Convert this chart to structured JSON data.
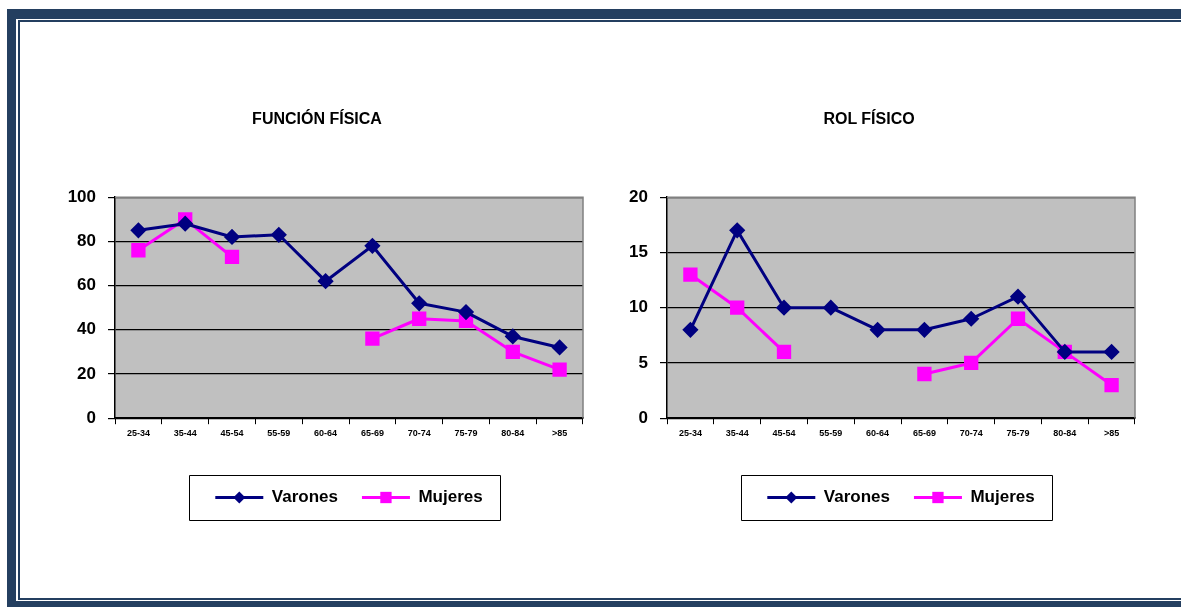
{
  "chart_data": [
    {
      "type": "line",
      "title": "FUNCIÓN FÍSICA",
      "categories": [
        "25-34",
        "35-44",
        "45-54",
        "55-59",
        "60-64",
        "65-69",
        "70-74",
        "75-79",
        "80-84",
        ">85"
      ],
      "series": [
        {
          "name": "Varones",
          "color": "#000080",
          "marker": "diamond",
          "values": [
            85,
            88,
            82,
            83,
            62,
            78,
            52,
            48,
            37,
            32
          ]
        },
        {
          "name": "Mujeres",
          "color": "#ff00ff",
          "marker": "square",
          "values": [
            76,
            90,
            73,
            null,
            null,
            36,
            45,
            44,
            30,
            22
          ]
        }
      ],
      "ylim": [
        0,
        100
      ],
      "yticks": [
        0,
        20,
        40,
        60,
        80,
        100
      ],
      "grid": "y",
      "legend": "bottom"
    },
    {
      "type": "line",
      "title": "ROL FÍSICO",
      "categories": [
        "25-34",
        "35-44",
        "45-54",
        "55-59",
        "60-64",
        "65-69",
        "70-74",
        "75-79",
        "80-84",
        ">85"
      ],
      "series": [
        {
          "name": "Varones",
          "color": "#000080",
          "marker": "diamond",
          "values": [
            8,
            17,
            10,
            10,
            8,
            8,
            9,
            11,
            6,
            6
          ]
        },
        {
          "name": "Mujeres",
          "color": "#ff00ff",
          "marker": "square",
          "values": [
            13,
            10,
            6,
            null,
            null,
            4,
            5,
            9,
            6,
            3
          ]
        }
      ],
      "ylim": [
        0,
        20
      ],
      "yticks": [
        0,
        5,
        10,
        15,
        20
      ],
      "grid": "y",
      "legend": "bottom"
    }
  ]
}
